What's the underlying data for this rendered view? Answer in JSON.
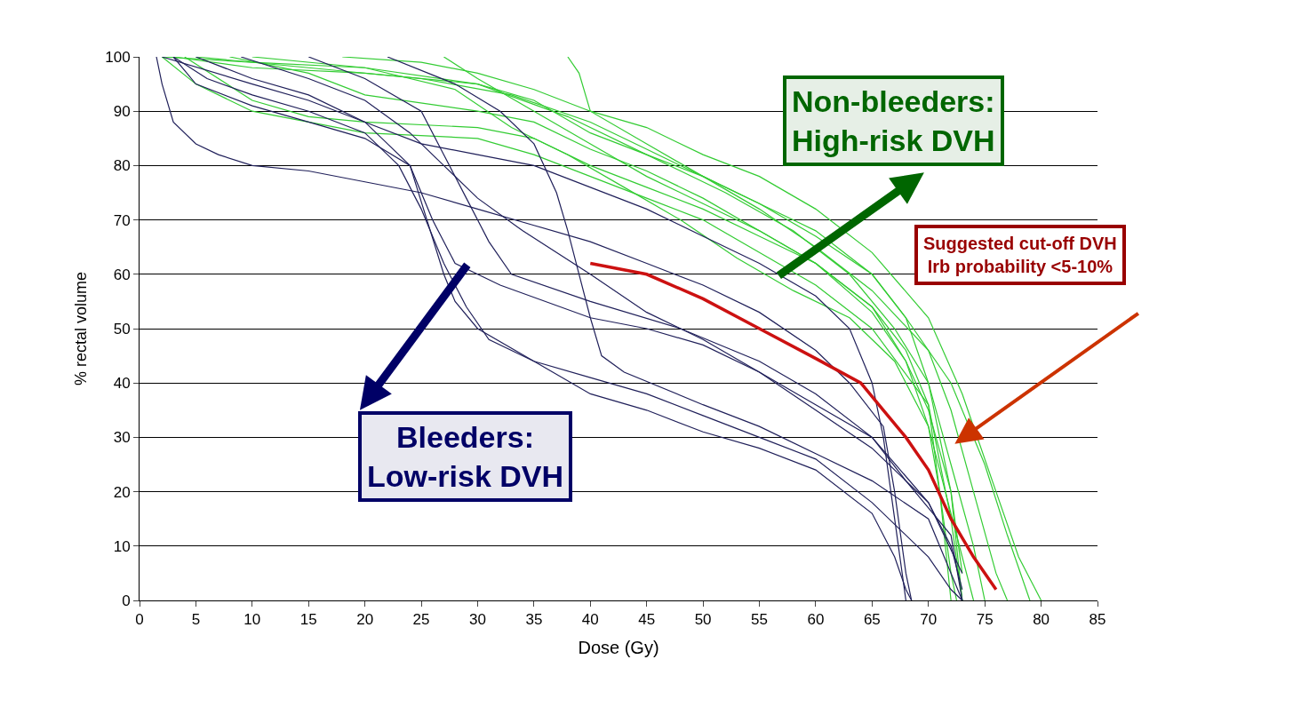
{
  "chart_data": {
    "type": "line",
    "xlabel": "Dose (Gy)",
    "ylabel": "% rectal volume",
    "xlim": [
      0,
      85
    ],
    "xticks": [
      0,
      5,
      10,
      15,
      20,
      25,
      30,
      35,
      40,
      45,
      50,
      55,
      60,
      65,
      70,
      75,
      80,
      85
    ],
    "ylim": [
      0,
      100
    ],
    "yticks": [
      0,
      10,
      20,
      30,
      40,
      50,
      60,
      70,
      80,
      90,
      100
    ],
    "grid": "y",
    "marker": "none",
    "line_style": "solid",
    "annotations": [
      "Non-bleeders: High-risk DVH",
      "Bleeders: Low-risk DVH",
      "Suggested cut-off DVH Irb probability <5-10%"
    ],
    "series": [
      {
        "color": "#33cc33",
        "x": [
          3,
          10,
          20,
          30,
          35,
          40,
          45,
          50,
          55,
          60,
          65,
          70,
          72,
          74,
          76,
          77
        ],
        "values": [
          100,
          98,
          97,
          95,
          92,
          86,
          82,
          78,
          72,
          65,
          57,
          46,
          35,
          20,
          5,
          0
        ]
      },
      {
        "color": "#33cc33",
        "x": [
          5,
          15,
          25,
          33,
          40,
          45,
          50,
          55,
          60,
          65,
          68,
          70,
          72,
          73
        ],
        "values": [
          100,
          98,
          96,
          93,
          88,
          83,
          78,
          73,
          68,
          60,
          52,
          40,
          20,
          0
        ]
      },
      {
        "color": "#33cc33",
        "x": [
          27,
          30,
          35,
          40,
          45,
          50,
          55,
          60,
          65,
          68,
          70,
          71,
          72,
          72.5
        ],
        "values": [
          100,
          96,
          90,
          84,
          78,
          73,
          68,
          62,
          54,
          44,
          32,
          20,
          5,
          0
        ]
      },
      {
        "color": "#33cc33",
        "x": [
          38,
          39,
          40,
          45,
          50,
          55,
          60,
          65,
          68,
          72,
          75,
          77,
          79
        ],
        "values": [
          100,
          97,
          90,
          84,
          78,
          73,
          67,
          60,
          52,
          40,
          25,
          12,
          0
        ]
      },
      {
        "color": "#33cc33",
        "x": [
          4,
          10,
          15,
          20,
          30,
          35,
          40,
          45,
          50,
          55,
          60,
          65,
          68,
          70,
          71,
          72
        ],
        "values": [
          100,
          92,
          89,
          88,
          87,
          85,
          80,
          76,
          72,
          67,
          62,
          54,
          46,
          36,
          20,
          0
        ]
      },
      {
        "color": "#33cc33",
        "x": [
          2,
          5,
          10,
          15,
          20,
          30,
          35,
          40,
          45,
          50,
          55,
          60,
          65,
          70,
          72,
          73
        ],
        "values": [
          100,
          95,
          90,
          88,
          86,
          85,
          82,
          78,
          74,
          70,
          64,
          58,
          50,
          36,
          15,
          0
        ]
      },
      {
        "color": "#33cc33",
        "x": [
          8,
          15,
          20,
          30,
          35,
          40,
          45,
          50,
          55,
          60,
          65,
          68,
          70,
          72,
          73
        ],
        "values": [
          100,
          97,
          93,
          90,
          88,
          83,
          79,
          74,
          68,
          62,
          53,
          44,
          35,
          20,
          5
        ]
      },
      {
        "color": "#33cc33",
        "x": [
          18,
          25,
          30,
          35,
          40,
          45,
          50,
          55,
          60,
          65,
          70,
          73,
          76,
          78,
          80
        ],
        "values": [
          100,
          99,
          97,
          94,
          90,
          87,
          82,
          78,
          72,
          64,
          52,
          38,
          20,
          8,
          0
        ]
      },
      {
        "color": "#33cc33",
        "x": [
          2,
          10,
          20,
          28,
          33,
          38,
          43,
          48,
          53,
          58,
          63,
          67,
          70,
          72,
          74
        ],
        "values": [
          100,
          99,
          98,
          94,
          87,
          82,
          76,
          70,
          63,
          57,
          52,
          44,
          32,
          16,
          0
        ]
      },
      {
        "color": "#33cc33",
        "x": [
          10,
          20,
          30,
          38,
          45,
          52,
          58,
          63,
          67,
          70,
          72,
          74,
          75
        ],
        "values": [
          100,
          98,
          95,
          89,
          82,
          75,
          68,
          60,
          50,
          40,
          25,
          10,
          0
        ]
      },
      {
        "color": "#20205a",
        "x": [
          1.5,
          2,
          3,
          5,
          7,
          10,
          15,
          20,
          25,
          30,
          35,
          40,
          45,
          50,
          55,
          60,
          63,
          66,
          67,
          68,
          68.5
        ],
        "values": [
          100,
          95,
          88,
          84,
          82,
          80,
          79,
          77,
          75,
          72,
          69,
          66,
          62,
          58,
          53,
          46,
          40,
          32,
          20,
          5,
          0
        ]
      },
      {
        "color": "#20205a",
        "x": [
          3,
          6,
          10,
          15,
          20,
          23,
          25,
          27,
          29,
          31,
          35,
          40,
          45,
          50,
          55,
          60,
          65,
          70,
          72,
          73
        ],
        "values": [
          100,
          96,
          93,
          90,
          86,
          80,
          72,
          62,
          54,
          48,
          44,
          41,
          38,
          34,
          30,
          26,
          18,
          8,
          2,
          0
        ]
      },
      {
        "color": "#20205a",
        "x": [
          5,
          10,
          15,
          20,
          24,
          26,
          28,
          32,
          40,
          45,
          50,
          55,
          60,
          65,
          68,
          70,
          72,
          73
        ],
        "values": [
          100,
          96,
          93,
          88,
          80,
          70,
          62,
          58,
          52,
          50,
          47,
          42,
          36,
          30,
          22,
          17,
          12,
          0
        ]
      },
      {
        "color": "#20205a",
        "x": [
          9,
          15,
          20,
          24,
          27,
          30,
          34,
          40,
          45,
          50,
          55,
          60,
          65,
          70,
          72,
          73
        ],
        "values": [
          100,
          96,
          92,
          86,
          80,
          74,
          68,
          60,
          53,
          48,
          42,
          35,
          28,
          18,
          10,
          2
        ]
      },
      {
        "color": "#20205a",
        "x": [
          15,
          20,
          25,
          27,
          29,
          31,
          33,
          40,
          48,
          55,
          60,
          65,
          70,
          73
        ],
        "values": [
          100,
          96,
          90,
          82,
          74,
          66,
          60,
          55,
          50,
          44,
          38,
          30,
          18,
          5
        ]
      },
      {
        "color": "#20205a",
        "x": [
          22,
          28,
          32,
          35,
          37,
          38,
          39,
          40,
          41,
          43,
          50,
          55,
          60,
          65,
          70,
          73
        ],
        "values": [
          100,
          95,
          90,
          84,
          75,
          68,
          60,
          52,
          45,
          42,
          36,
          32,
          27,
          22,
          15,
          0
        ]
      },
      {
        "color": "#20205a",
        "x": [
          2,
          10,
          15,
          20,
          25,
          30,
          35,
          40,
          45,
          50,
          55,
          60,
          63,
          65,
          66,
          67,
          68
        ],
        "values": [
          100,
          95,
          92,
          88,
          84,
          82,
          80,
          76,
          72,
          67,
          62,
          56,
          50,
          40,
          30,
          15,
          0
        ]
      },
      {
        "color": "#20205a",
        "x": [
          3,
          5,
          10,
          15,
          20,
          24,
          27,
          28,
          30,
          35,
          40,
          45,
          50,
          55,
          60,
          65,
          67,
          68,
          68.5
        ],
        "values": [
          100,
          95,
          91,
          88,
          85,
          80,
          60,
          55,
          50,
          44,
          38,
          35,
          31,
          28,
          24,
          16,
          8,
          2,
          0
        ]
      },
      {
        "color": "#cc1111",
        "x": [
          40,
          45,
          50,
          55,
          60,
          64,
          66,
          68,
          70,
          72,
          74,
          76
        ],
        "values": [
          62,
          60,
          55.5,
          50,
          44.5,
          40,
          35,
          30,
          24,
          15,
          8,
          2
        ]
      }
    ]
  }
}
